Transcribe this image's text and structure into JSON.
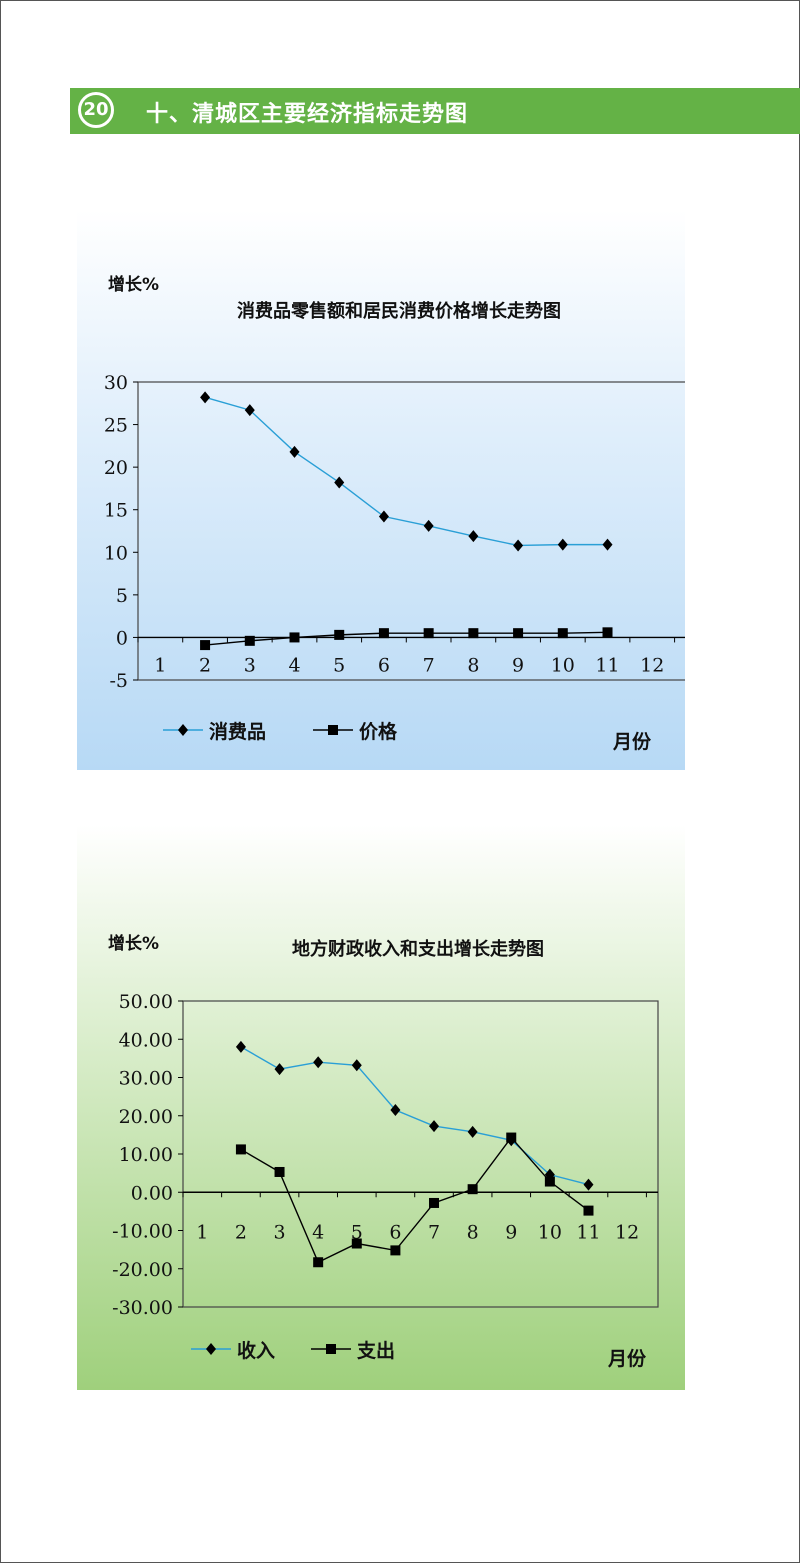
{
  "header": {
    "badge_number": "20",
    "section_title": "十、清城区主要经济指标走势图",
    "band_color": "#64b246"
  },
  "chart_data": [
    {
      "type": "line",
      "title": "消费品零售额和居民消费价格增长走势图",
      "ylabel": "增长%",
      "xlabel": "月份",
      "categories": [
        "1",
        "2",
        "3",
        "4",
        "5",
        "6",
        "7",
        "8",
        "9",
        "10",
        "11",
        "12"
      ],
      "y_ticks": [
        "30",
        "25",
        "20",
        "15",
        "10",
        "5",
        "0",
        "-5"
      ],
      "ylim": [
        -5,
        30
      ],
      "series": [
        {
          "name": "消费品",
          "color": "#2a9fd6",
          "marker": "diamond",
          "values": [
            null,
            28.2,
            26.7,
            21.8,
            18.2,
            14.2,
            13.1,
            11.9,
            10.8,
            10.9,
            10.9,
            null
          ]
        },
        {
          "name": "价格",
          "color": "#000000",
          "marker": "square",
          "values": [
            null,
            -0.9,
            -0.4,
            0.0,
            0.3,
            0.5,
            0.5,
            0.5,
            0.5,
            0.5,
            0.6,
            null
          ]
        }
      ],
      "legend_position": "bottom-left"
    },
    {
      "type": "line",
      "title": "地方财政收入和支出增长走势图",
      "ylabel": "增长%",
      "xlabel": "月份",
      "categories": [
        "1",
        "2",
        "3",
        "4",
        "5",
        "6",
        "7",
        "8",
        "9",
        "10",
        "11",
        "12"
      ],
      "y_ticks": [
        "50.00",
        "40.00",
        "30.00",
        "20.00",
        "10.00",
        "0.00",
        "-10.00",
        "-20.00",
        "-30.00"
      ],
      "ylim": [
        -30,
        50
      ],
      "series": [
        {
          "name": "收入",
          "color": "#2a9fd6",
          "marker": "diamond",
          "values": [
            null,
            38.0,
            32.2,
            34.0,
            33.2,
            21.5,
            17.3,
            15.8,
            13.6,
            4.6,
            2.0,
            null
          ]
        },
        {
          "name": "支出",
          "color": "#000000",
          "marker": "square",
          "values": [
            null,
            11.2,
            5.3,
            -18.3,
            -13.4,
            -15.2,
            -2.8,
            0.8,
            14.3,
            2.8,
            -4.8,
            null
          ]
        }
      ],
      "legend_position": "bottom-left"
    }
  ]
}
